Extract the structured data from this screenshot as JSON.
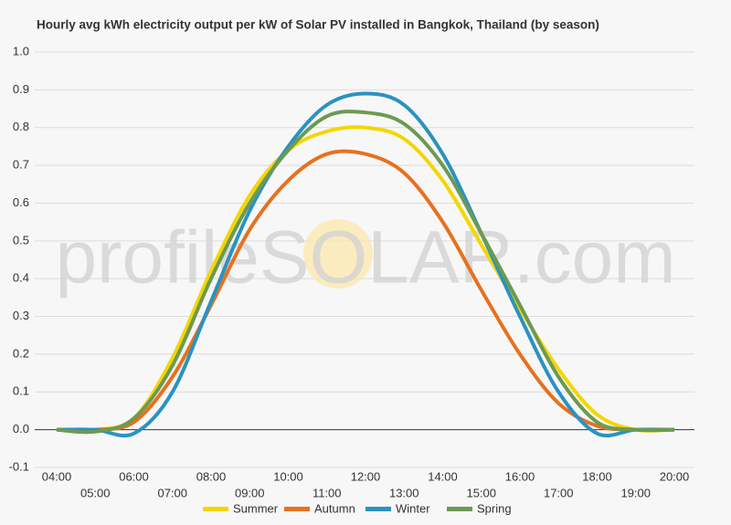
{
  "chart_data": {
    "type": "line",
    "title": "Hourly avg kWh electricity output per kW of Solar PV installed in Bangkok, Thailand (by season)",
    "watermark": "profileSOLAR.com",
    "categories": [
      "04:00",
      "05:00",
      "06:00",
      "07:00",
      "08:00",
      "09:00",
      "10:00",
      "11:00",
      "12:00",
      "13:00",
      "14:00",
      "15:00",
      "16:00",
      "17:00",
      "18:00",
      "19:00",
      "20:00"
    ],
    "series": [
      {
        "name": "Summer",
        "color": "#f4d600",
        "values": [
          0,
          0,
          0.03,
          0.19,
          0.42,
          0.62,
          0.74,
          0.79,
          0.8,
          0.77,
          0.66,
          0.49,
          0.32,
          0.16,
          0.04,
          0,
          0
        ]
      },
      {
        "name": "Autumn",
        "color": "#e6711f",
        "values": [
          0,
          0,
          0.02,
          0.14,
          0.33,
          0.53,
          0.66,
          0.73,
          0.73,
          0.68,
          0.55,
          0.37,
          0.2,
          0.07,
          0.01,
          0,
          0
        ]
      },
      {
        "name": "Winter",
        "color": "#2a92c2",
        "values": [
          0,
          0,
          -0.01,
          0.1,
          0.34,
          0.58,
          0.75,
          0.86,
          0.89,
          0.86,
          0.73,
          0.52,
          0.3,
          0.1,
          -0.01,
          0,
          0
        ]
      },
      {
        "name": "Spring",
        "color": "#6c9a52",
        "values": [
          0,
          -0.005,
          0.03,
          0.17,
          0.4,
          0.6,
          0.74,
          0.83,
          0.84,
          0.81,
          0.7,
          0.52,
          0.33,
          0.14,
          0.02,
          0,
          0
        ]
      }
    ],
    "ylim": [
      -0.1,
      1.0
    ],
    "yticks": [
      -0.1,
      {
        "value": 0,
        "label": "0.0"
      },
      0.1,
      0.2,
      0.3,
      0.4,
      0.5,
      0.6,
      0.7,
      0.8,
      0.9,
      {
        "value": 1,
        "label": "1.0"
      }
    ],
    "grid": true,
    "legend": "bottom"
  }
}
